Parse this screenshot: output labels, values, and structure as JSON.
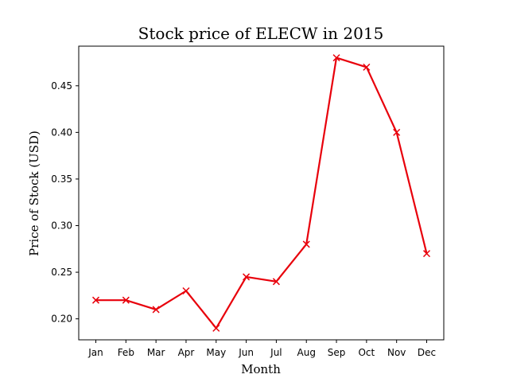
{
  "chart_data": {
    "type": "line",
    "title": "Stock price of ELECW in 2015",
    "xlabel": "Month",
    "ylabel": "Price of Stock (USD)",
    "categories": [
      "Jan",
      "Feb",
      "Mar",
      "Apr",
      "May",
      "Jun",
      "Jul",
      "Aug",
      "Sep",
      "Oct",
      "Nov",
      "Dec"
    ],
    "series": [
      {
        "values": [
          0.22,
          0.22,
          0.21,
          0.23,
          0.19,
          0.245,
          0.24,
          0.28,
          0.48,
          0.47,
          0.4,
          0.27
        ],
        "color": "#e8000b",
        "marker": "x"
      }
    ],
    "ylim": [
      0.1775,
      0.4925
    ],
    "yticks": [
      0.2,
      0.25,
      0.3,
      0.35,
      0.4,
      0.45
    ],
    "ytick_labels": [
      "0.20",
      "0.25",
      "0.30",
      "0.35",
      "0.40",
      "0.45"
    ],
    "grid": false,
    "legend": "none"
  }
}
